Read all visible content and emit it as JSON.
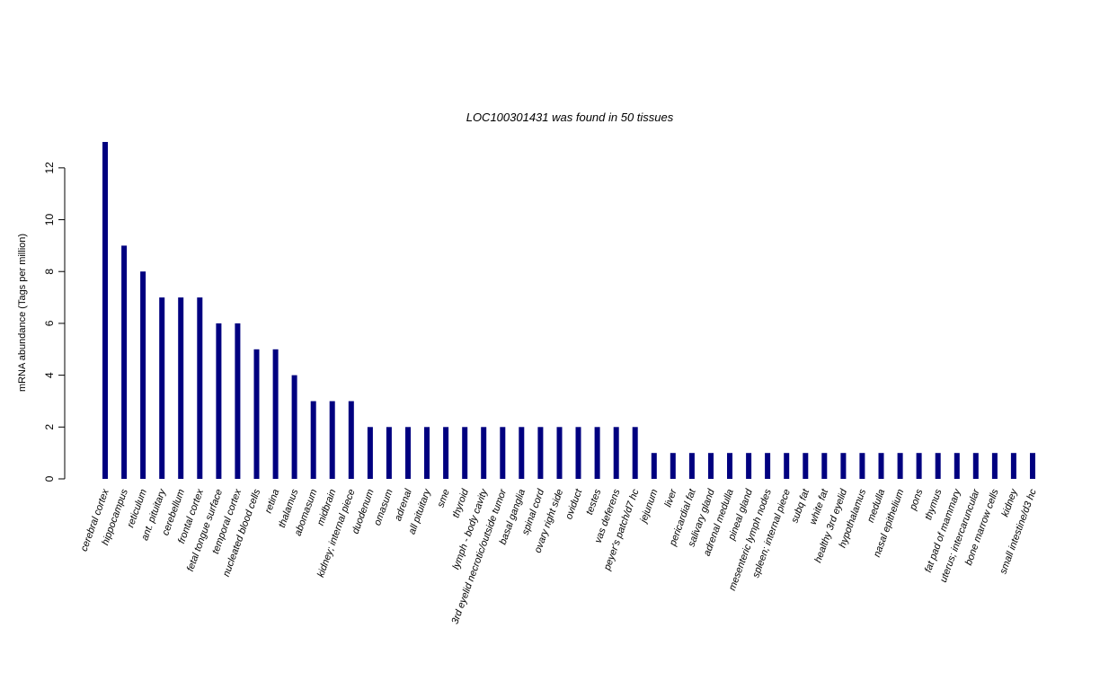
{
  "chart_data": {
    "type": "bar",
    "title": "LOC100301431  was found in  50  tissues",
    "ylabel": "mRNA abundance (Tags per million)",
    "ylim": [
      0,
      13
    ],
    "yticks": [
      0,
      2,
      4,
      6,
      8,
      10,
      12
    ],
    "bar_color": "#000080",
    "categories": [
      "cerebral cortex",
      "hippocampus",
      "reticulum",
      "ant. pituitary",
      "cerebellum",
      "frontal cortex",
      "fetal tongue surface",
      "temporal cortex",
      "nucleated blood cells",
      "retina",
      "thalamus",
      "abomasum",
      "midbrain",
      "kidney; internal piece",
      "duodenum",
      "omasum",
      "adrenal",
      "all pituitary",
      "sme",
      "thyroid",
      "lymph - body cavity",
      "3rd eyelid necrotic/outside tumor",
      "basal ganglia",
      "spinal cord",
      "ovary right side",
      "oviduct",
      "testes",
      "vas deferens",
      "peyer's patch/d7 hc",
      "jejunum",
      "liver",
      "pericardial fat",
      "salivary gland",
      "adrenal medulla",
      "pineal gland",
      "mesenteric lymph nodes",
      "spleen; internal piece",
      "subq fat",
      "white fat",
      "healthy 3rd eyelid",
      "hypothalamus",
      "medulla",
      "nasal epithelium",
      "pons",
      "thymus",
      "fat pad of mammary",
      "uterus; intercaruncular",
      "bone marrow cells",
      "kidney",
      "small intestine/d3 hc"
    ],
    "values": [
      13,
      9,
      8,
      7,
      7,
      7,
      6,
      6,
      5,
      5,
      4,
      3,
      3,
      3,
      2,
      2,
      2,
      2,
      2,
      2,
      2,
      2,
      2,
      2,
      2,
      2,
      2,
      2,
      2,
      1,
      1,
      1,
      1,
      1,
      1,
      1,
      1,
      1,
      1,
      1,
      1,
      1,
      1,
      1,
      1,
      1,
      1,
      1,
      1,
      1
    ]
  }
}
